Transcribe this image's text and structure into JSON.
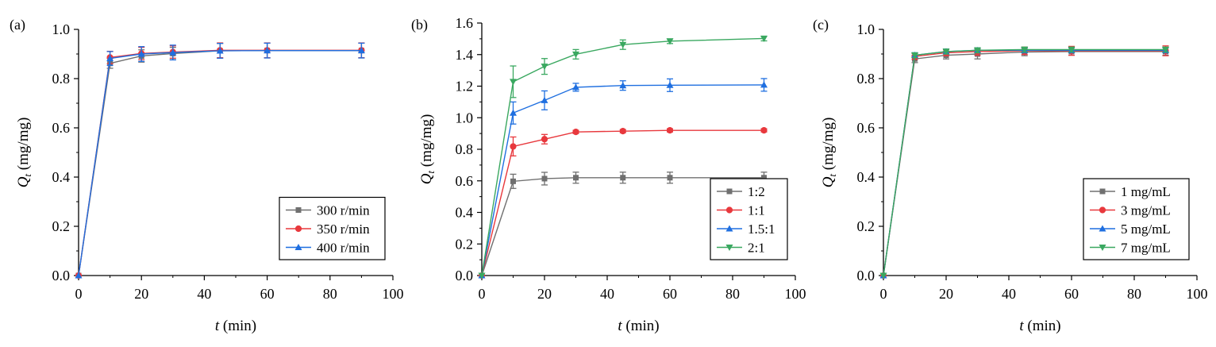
{
  "chart_data": [
    {
      "type": "line",
      "panel_label": "(a)",
      "xlabel_italic": "t",
      "xlabel_rest": " (min)",
      "ylabel_italic": "Q",
      "ylabel_sub": "t",
      "ylabel_rest": " (mg/mg)",
      "xlim": [
        0,
        100
      ],
      "ylim": [
        0,
        1.0
      ],
      "xticks": [
        0,
        20,
        40,
        60,
        80,
        100
      ],
      "yticks": [
        0.0,
        0.2,
        0.4,
        0.6,
        0.8,
        1.0
      ],
      "ytick_decimals": 1,
      "legend_position": "lower-right",
      "x": [
        0,
        10,
        20,
        30,
        45,
        60,
        90
      ],
      "series": [
        {
          "name": "300 r/min",
          "color": "#707070",
          "marker": "square",
          "values": [
            0,
            0.862,
            0.892,
            0.902,
            0.913,
            0.914,
            0.914
          ],
          "errors": [
            0,
            0.02,
            0.025,
            0.025,
            0.03,
            0.03,
            0.03
          ]
        },
        {
          "name": "350 r/min",
          "color": "#e8383d",
          "marker": "circle",
          "values": [
            0,
            0.886,
            0.902,
            0.908,
            0.915,
            0.915,
            0.915
          ],
          "errors": [
            0,
            0.025,
            0.025,
            0.025,
            0.03,
            0.03,
            0.03
          ]
        },
        {
          "name": "400 r/min",
          "color": "#1f6fe0",
          "marker": "triangle-up",
          "values": [
            0,
            0.882,
            0.9,
            0.906,
            0.913,
            0.914,
            0.914
          ],
          "errors": [
            0,
            0.028,
            0.03,
            0.03,
            0.03,
            0.03,
            0.03
          ]
        }
      ]
    },
    {
      "type": "line",
      "panel_label": "(b)",
      "xlabel_italic": "t",
      "xlabel_rest": " (min)",
      "ylabel_italic": "Q",
      "ylabel_sub": "t",
      "ylabel_rest": " (mg/mg)",
      "xlim": [
        0,
        100
      ],
      "ylim": [
        0,
        1.6
      ],
      "xticks": [
        0,
        20,
        40,
        60,
        80,
        100
      ],
      "yticks": [
        0.0,
        0.2,
        0.4,
        0.6,
        0.8,
        1.0,
        1.2,
        1.4,
        1.6
      ],
      "ytick_decimals": 1,
      "legend_position": "lower-right",
      "x": [
        0,
        10,
        20,
        30,
        45,
        60,
        90
      ],
      "series": [
        {
          "name": "1:2",
          "color": "#707070",
          "marker": "square",
          "values": [
            0,
            0.597,
            0.614,
            0.62,
            0.62,
            0.62,
            0.62
          ],
          "errors": [
            0,
            0.045,
            0.04,
            0.035,
            0.035,
            0.035,
            0.035
          ]
        },
        {
          "name": "1:1",
          "color": "#e8383d",
          "marker": "circle",
          "values": [
            0,
            0.818,
            0.864,
            0.91,
            0.915,
            0.92,
            0.92
          ],
          "errors": [
            0,
            0.06,
            0.03,
            0.01,
            0.01,
            0.01,
            0.01
          ]
        },
        {
          "name": "1.5:1",
          "color": "#1f6fe0",
          "marker": "triangle-up",
          "values": [
            0,
            1.03,
            1.11,
            1.193,
            1.204,
            1.206,
            1.208
          ],
          "errors": [
            0,
            0.07,
            0.06,
            0.025,
            0.03,
            0.04,
            0.04
          ]
        },
        {
          "name": "2:1",
          "color": "#3aa860",
          "marker": "triangle-down",
          "values": [
            0,
            1.228,
            1.325,
            1.402,
            1.463,
            1.485,
            1.502
          ],
          "errors": [
            0,
            0.1,
            0.05,
            0.03,
            0.03,
            0.015,
            0.015
          ]
        }
      ]
    },
    {
      "type": "line",
      "panel_label": "(c)",
      "xlabel_italic": "t",
      "xlabel_rest": " (min)",
      "ylabel_italic": "Q",
      "ylabel_sub": "t",
      "ylabel_rest": " (mg/mg)",
      "xlim": [
        0,
        100
      ],
      "ylim": [
        0,
        1.0
      ],
      "xticks": [
        0,
        20,
        40,
        60,
        80,
        100
      ],
      "yticks": [
        0.0,
        0.2,
        0.4,
        0.6,
        0.8,
        1.0
      ],
      "ytick_decimals": 1,
      "legend_position": "lower-right",
      "x": [
        0,
        10,
        20,
        30,
        45,
        60,
        90
      ],
      "series": [
        {
          "name": "1 mg/mL",
          "color": "#707070",
          "marker": "square",
          "values": [
            0,
            0.88,
            0.895,
            0.9,
            0.908,
            0.91,
            0.91
          ],
          "errors": [
            0,
            0.015,
            0.015,
            0.02,
            0.015,
            0.015,
            0.015
          ]
        },
        {
          "name": "3 mg/mL",
          "color": "#e8383d",
          "marker": "circle",
          "values": [
            0,
            0.89,
            0.905,
            0.91,
            0.913,
            0.913,
            0.913
          ],
          "errors": [
            0,
            0.012,
            0.012,
            0.015,
            0.015,
            0.018,
            0.02
          ]
        },
        {
          "name": "5 mg/mL",
          "color": "#1f6fe0",
          "marker": "triangle-up",
          "values": [
            0,
            0.895,
            0.91,
            0.915,
            0.915,
            0.915,
            0.915
          ],
          "errors": [
            0,
            0.01,
            0.01,
            0.01,
            0.01,
            0.01,
            0.01
          ]
        },
        {
          "name": "7 mg/mL",
          "color": "#3aa860",
          "marker": "triangle-down",
          "values": [
            0,
            0.895,
            0.91,
            0.915,
            0.918,
            0.918,
            0.918
          ],
          "errors": [
            0,
            0.01,
            0.01,
            0.01,
            0.01,
            0.01,
            0.01
          ]
        }
      ]
    }
  ]
}
